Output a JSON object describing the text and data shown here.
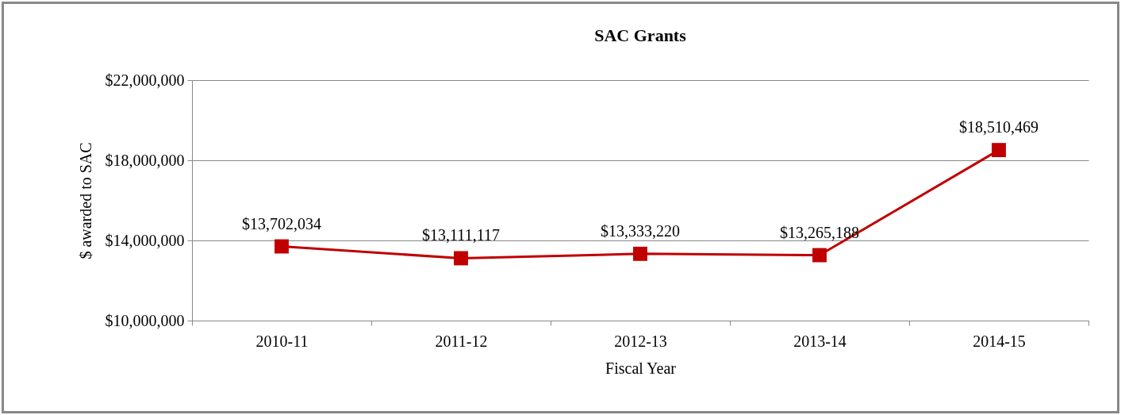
{
  "chart_data": {
    "type": "line",
    "title": "SAC Grants",
    "xlabel": "Fiscal Year",
    "ylabel": "$ awarded  to SAC",
    "categories": [
      "2010-11",
      "2011-12",
      "2012-13",
      "2013-14",
      "2014-15"
    ],
    "series": [
      {
        "color": "#c00000",
        "values": [
          13702034,
          13111117,
          13333220,
          13265188,
          18510469
        ]
      }
    ],
    "value_labels": [
      "$13,702,034",
      "$13,111,117",
      "$13,333,220",
      "$13,265,188",
      "$18,510,469"
    ],
    "ylim": [
      10000000,
      22000000
    ],
    "yticks": [
      {
        "value": 10000000,
        "label": "$10,000,000"
      },
      {
        "value": 14000000,
        "label": "$14,000,000"
      },
      {
        "value": 18000000,
        "label": "$18,000,000"
      },
      {
        "value": 22000000,
        "label": "$22,000,000"
      }
    ],
    "grid": "y",
    "marker": "square",
    "line_style": "solid",
    "legend": false
  }
}
